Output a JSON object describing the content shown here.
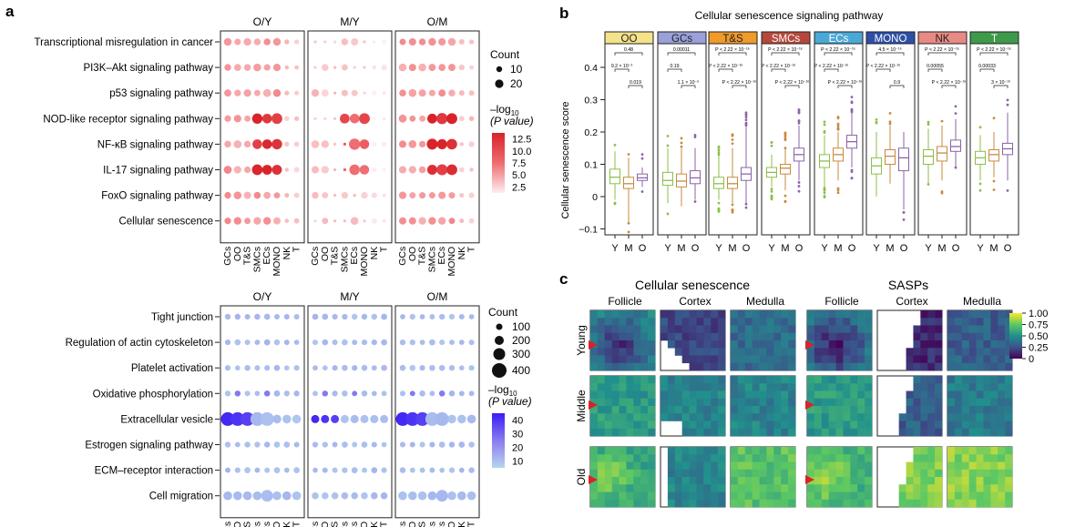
{
  "panel_labels": {
    "a": "a",
    "b": "b",
    "c": "c"
  },
  "colors": {
    "red_scale": [
      "#fde5e6",
      "#f7a9ac",
      "#ec5b60",
      "#d8232a"
    ],
    "blue_scale": [
      "#a9cbe9",
      "#9aa6ee",
      "#6f5ef0",
      "#3a1cf5"
    ],
    "viridis": [
      "#440154",
      "#3b528b",
      "#21908d",
      "#5dc863",
      "#fde725"
    ],
    "box_colors": {
      "Y": "#8dbf4a",
      "M": "#c98a3e",
      "O": "#8c63a8"
    }
  },
  "panel_a_top": {
    "columns_titles": [
      "O/Y",
      "M/Y",
      "O/M"
    ],
    "rows": [
      "Transcriptional misregulation in cancer",
      "PI3K–Akt signaling pathway",
      "p53 signaling pathway",
      "NOD-like receptor signaling pathway",
      "NF-κB signaling pathway",
      "IL-17 signaling pathway",
      "FoxO signaling pathway",
      "Cellular senescence"
    ],
    "cell_types": [
      "GCs",
      "OO",
      "T&S",
      "SMCs",
      "ECs",
      "MONO",
      "NK",
      "T"
    ],
    "size_legend": {
      "title": "Count",
      "values": [
        "10",
        "20"
      ]
    },
    "color_legend": {
      "title_line1": "–log",
      "title_sub": "10",
      "title_line2": "(P value)",
      "ticks": [
        "12.5",
        "10.0",
        "7.5",
        "5.0",
        "2.5"
      ]
    }
  },
  "panel_a_bottom": {
    "columns_titles": [
      "O/Y",
      "M/Y",
      "O/M"
    ],
    "rows": [
      "Tight junction",
      "Regulation of actin cytoskeleton",
      "Platelet activation",
      "Oxidative phosphorylation",
      "Extracellular vesicle",
      "Estrogen signaling pathway",
      "ECM–receptor interaction",
      "Cell migration"
    ],
    "cell_types": [
      "GCs",
      "OO",
      "T&S",
      "SMCs",
      "ECs",
      "MONO",
      "NK",
      "T"
    ],
    "size_legend": {
      "title": "Count",
      "values": [
        "100",
        "200",
        "300",
        "400"
      ]
    },
    "color_legend": {
      "title_line1": "–log",
      "title_sub": "10",
      "title_line2": "(P value)",
      "ticks": [
        "40",
        "30",
        "20",
        "10"
      ]
    }
  },
  "panel_b": {
    "title": "Cellular senescence signaling pathway",
    "ylabel": "Cellular senescence score",
    "y_ticks": [
      "0.4",
      "0.3",
      "0.2",
      "0.1",
      "0",
      "−0.1"
    ],
    "group_x_labels": [
      "Y",
      "M",
      "O"
    ],
    "cells": [
      {
        "name": "OO",
        "color": "#f4e38a",
        "p_top": "0.48",
        "p_left": "9.2 × 10⁻³",
        "p_right": "0.019",
        "boxes": [
          {
            "q1": 0.04,
            "med": 0.06,
            "q3": 0.085,
            "lo": -0.01,
            "hi": 0.14
          },
          {
            "q1": 0.025,
            "med": 0.04,
            "q3": 0.06,
            "lo": -0.08,
            "hi": 0.12
          },
          {
            "q1": 0.05,
            "med": 0.058,
            "q3": 0.07,
            "lo": 0.03,
            "hi": 0.09
          }
        ]
      },
      {
        "name": "GCs",
        "color": "#9aa0d8",
        "p_top": "0.00011",
        "p_left": "0.19",
        "p_right": "1.1 × 10⁻⁶",
        "boxes": [
          {
            "q1": 0.035,
            "med": 0.05,
            "q3": 0.075,
            "lo": -0.02,
            "hi": 0.15
          },
          {
            "q1": 0.03,
            "med": 0.048,
            "q3": 0.07,
            "lo": -0.03,
            "hi": 0.15
          },
          {
            "q1": 0.04,
            "med": 0.058,
            "q3": 0.08,
            "lo": -0.01,
            "hi": 0.15
          }
        ]
      },
      {
        "name": "T&S",
        "color": "#f09a2a",
        "p_top": "P < 2.22 × 10⁻¹⁶",
        "p_left": "P < 2.22 × 10⁻¹⁶",
        "p_right": "P < 2.22 × 10⁻¹⁶",
        "boxes": [
          {
            "q1": 0.025,
            "med": 0.04,
            "q3": 0.06,
            "lo": -0.01,
            "hi": 0.13
          },
          {
            "q1": 0.025,
            "med": 0.04,
            "q3": 0.06,
            "lo": -0.02,
            "hi": 0.15
          },
          {
            "q1": 0.05,
            "med": 0.07,
            "q3": 0.09,
            "lo": -0.02,
            "hi": 0.22
          }
        ]
      },
      {
        "name": "SMCs",
        "color": "#b5483c",
        "p_top": "P < 2.22 × 10⁻¹⁶",
        "p_left": "P < 2.22 × 10⁻¹⁶",
        "p_right": "P < 2.22 × 10⁻¹⁶",
        "boxes": [
          {
            "q1": 0.06,
            "med": 0.075,
            "q3": 0.09,
            "lo": 0.03,
            "hi": 0.13
          },
          {
            "q1": 0.07,
            "med": 0.088,
            "q3": 0.1,
            "lo": 0.02,
            "hi": 0.15
          },
          {
            "q1": 0.11,
            "med": 0.13,
            "q3": 0.15,
            "lo": 0.05,
            "hi": 0.22
          }
        ]
      },
      {
        "name": "ECs",
        "color": "#4aa8d6",
        "p_top": "P < 2.22 × 10⁻¹⁶",
        "p_left": "P < 2.22 × 10⁻¹⁶",
        "p_right": "P < 2.22 × 10⁻¹⁶",
        "boxes": [
          {
            "q1": 0.09,
            "med": 0.11,
            "q3": 0.13,
            "lo": 0.03,
            "hi": 0.19
          },
          {
            "q1": 0.11,
            "med": 0.13,
            "q3": 0.15,
            "lo": 0.05,
            "hi": 0.2
          },
          {
            "q1": 0.15,
            "med": 0.17,
            "q3": 0.19,
            "lo": 0.09,
            "hi": 0.26
          }
        ]
      },
      {
        "name": "MONO",
        "color": "#2f4fa6",
        "p_top": "4.5 × 10⁻¹⁶",
        "p_left": "P < 2.22 × 10⁻¹⁶",
        "p_right": "0.9",
        "boxes": [
          {
            "q1": 0.07,
            "med": 0.095,
            "q3": 0.12,
            "lo": 0.0,
            "hi": 0.2
          },
          {
            "q1": 0.1,
            "med": 0.125,
            "q3": 0.145,
            "lo": 0.04,
            "hi": 0.22
          },
          {
            "q1": 0.08,
            "med": 0.12,
            "q3": 0.15,
            "lo": -0.04,
            "hi": 0.2
          }
        ]
      },
      {
        "name": "NK",
        "color": "#e88a84",
        "p_top": "P < 2.22 × 10⁻¹⁶",
        "p_left": "0.00055",
        "p_right": "P < 2.22 × 10⁻¹⁶",
        "boxes": [
          {
            "q1": 0.1,
            "med": 0.125,
            "q3": 0.145,
            "lo": 0.04,
            "hi": 0.21
          },
          {
            "q1": 0.11,
            "med": 0.135,
            "q3": 0.155,
            "lo": 0.05,
            "hi": 0.22
          },
          {
            "q1": 0.14,
            "med": 0.155,
            "q3": 0.175,
            "lo": 0.09,
            "hi": 0.24
          }
        ]
      },
      {
        "name": "T",
        "color": "#3e9a4a",
        "p_top": "P < 2.22 × 10⁻¹⁶",
        "p_left": "0.00033",
        "p_right": "3 × 10⁻¹⁰",
        "boxes": [
          {
            "q1": 0.1,
            "med": 0.12,
            "q3": 0.14,
            "lo": 0.05,
            "hi": 0.19
          },
          {
            "q1": 0.11,
            "med": 0.13,
            "q3": 0.145,
            "lo": 0.06,
            "hi": 0.2
          },
          {
            "q1": 0.13,
            "med": 0.148,
            "q3": 0.165,
            "lo": 0.05,
            "hi": 0.26
          }
        ]
      }
    ]
  },
  "panel_c": {
    "group_titles": [
      "Cellular senescence",
      "SASPs"
    ],
    "column_labels": [
      "Follicle",
      "Cortex",
      "Medulla"
    ],
    "row_labels": [
      "Young",
      "Middle",
      "Old"
    ],
    "colorbar_ticks": [
      "1.00",
      "0.75",
      "0.50",
      "0.25",
      "0"
    ]
  }
}
